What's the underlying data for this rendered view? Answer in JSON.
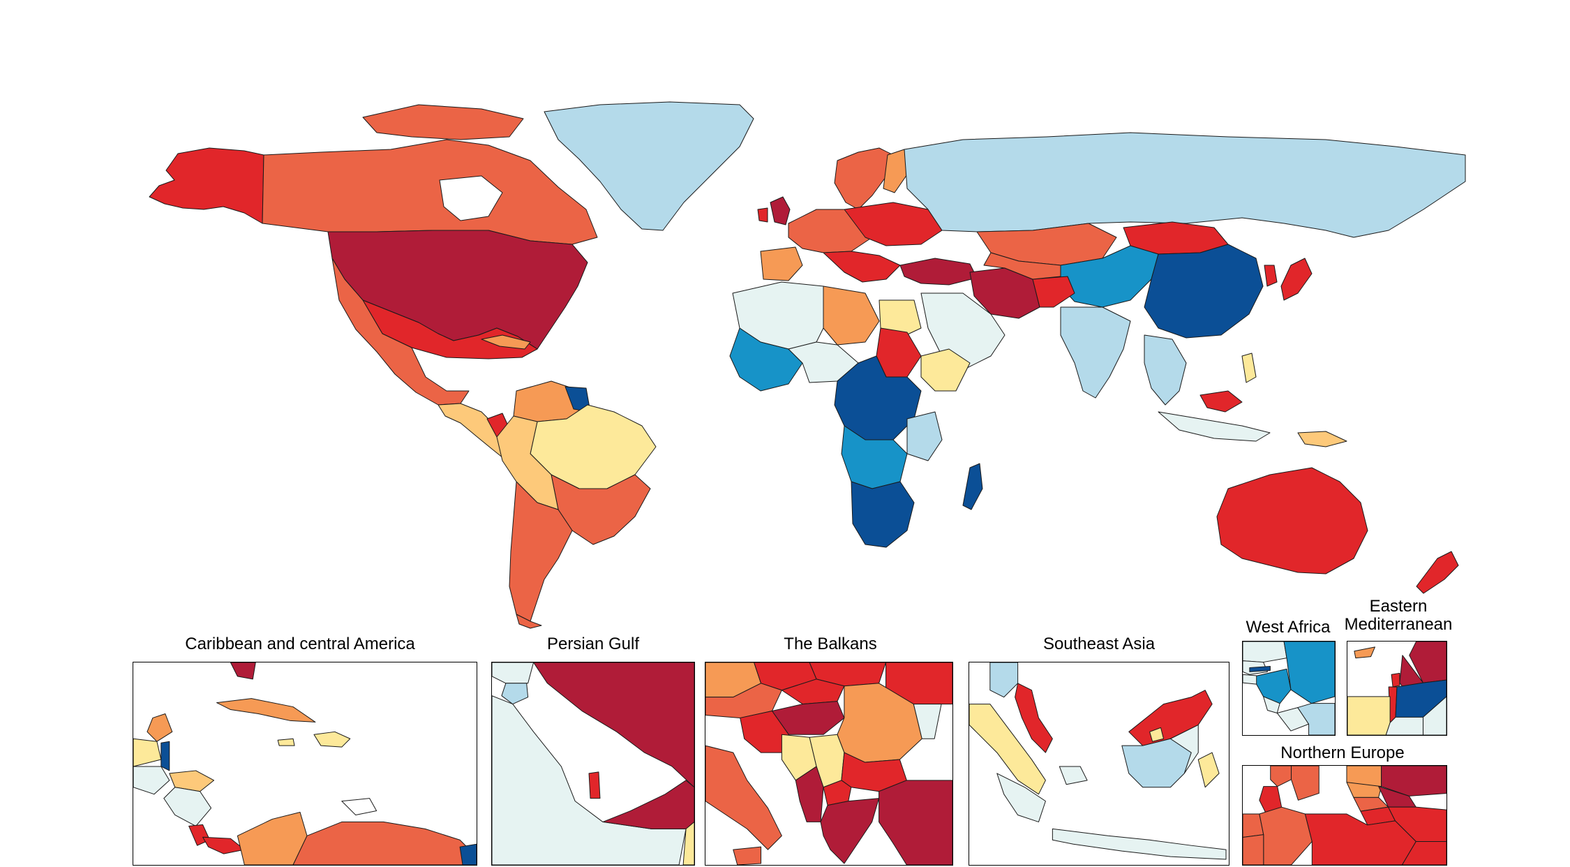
{
  "colors": {
    "c1": "#b01c38",
    "c2": "#e1262a",
    "c3": "#eb6446",
    "c4": "#f69a55",
    "c5": "#fdc97a",
    "c6": "#fde99a",
    "c7": "#e6f3f2",
    "c8": "#b4daea",
    "c9": "#1793c8",
    "c10": "#0b4f96",
    "water": "#ffffff"
  },
  "insets": {
    "caribbean": {
      "title": "Caribbean and central America"
    },
    "persian_gulf": {
      "title": "Persian Gulf"
    },
    "balkans": {
      "title": "The Balkans"
    },
    "southeast_asia": {
      "title": "Southeast Asia"
    },
    "west_africa": {
      "title": "West Africa"
    },
    "eastern_med": {
      "title_line1": "Eastern",
      "title_line2": "Mediterranean"
    },
    "northern_europe": {
      "title": "Northern Europe"
    }
  }
}
